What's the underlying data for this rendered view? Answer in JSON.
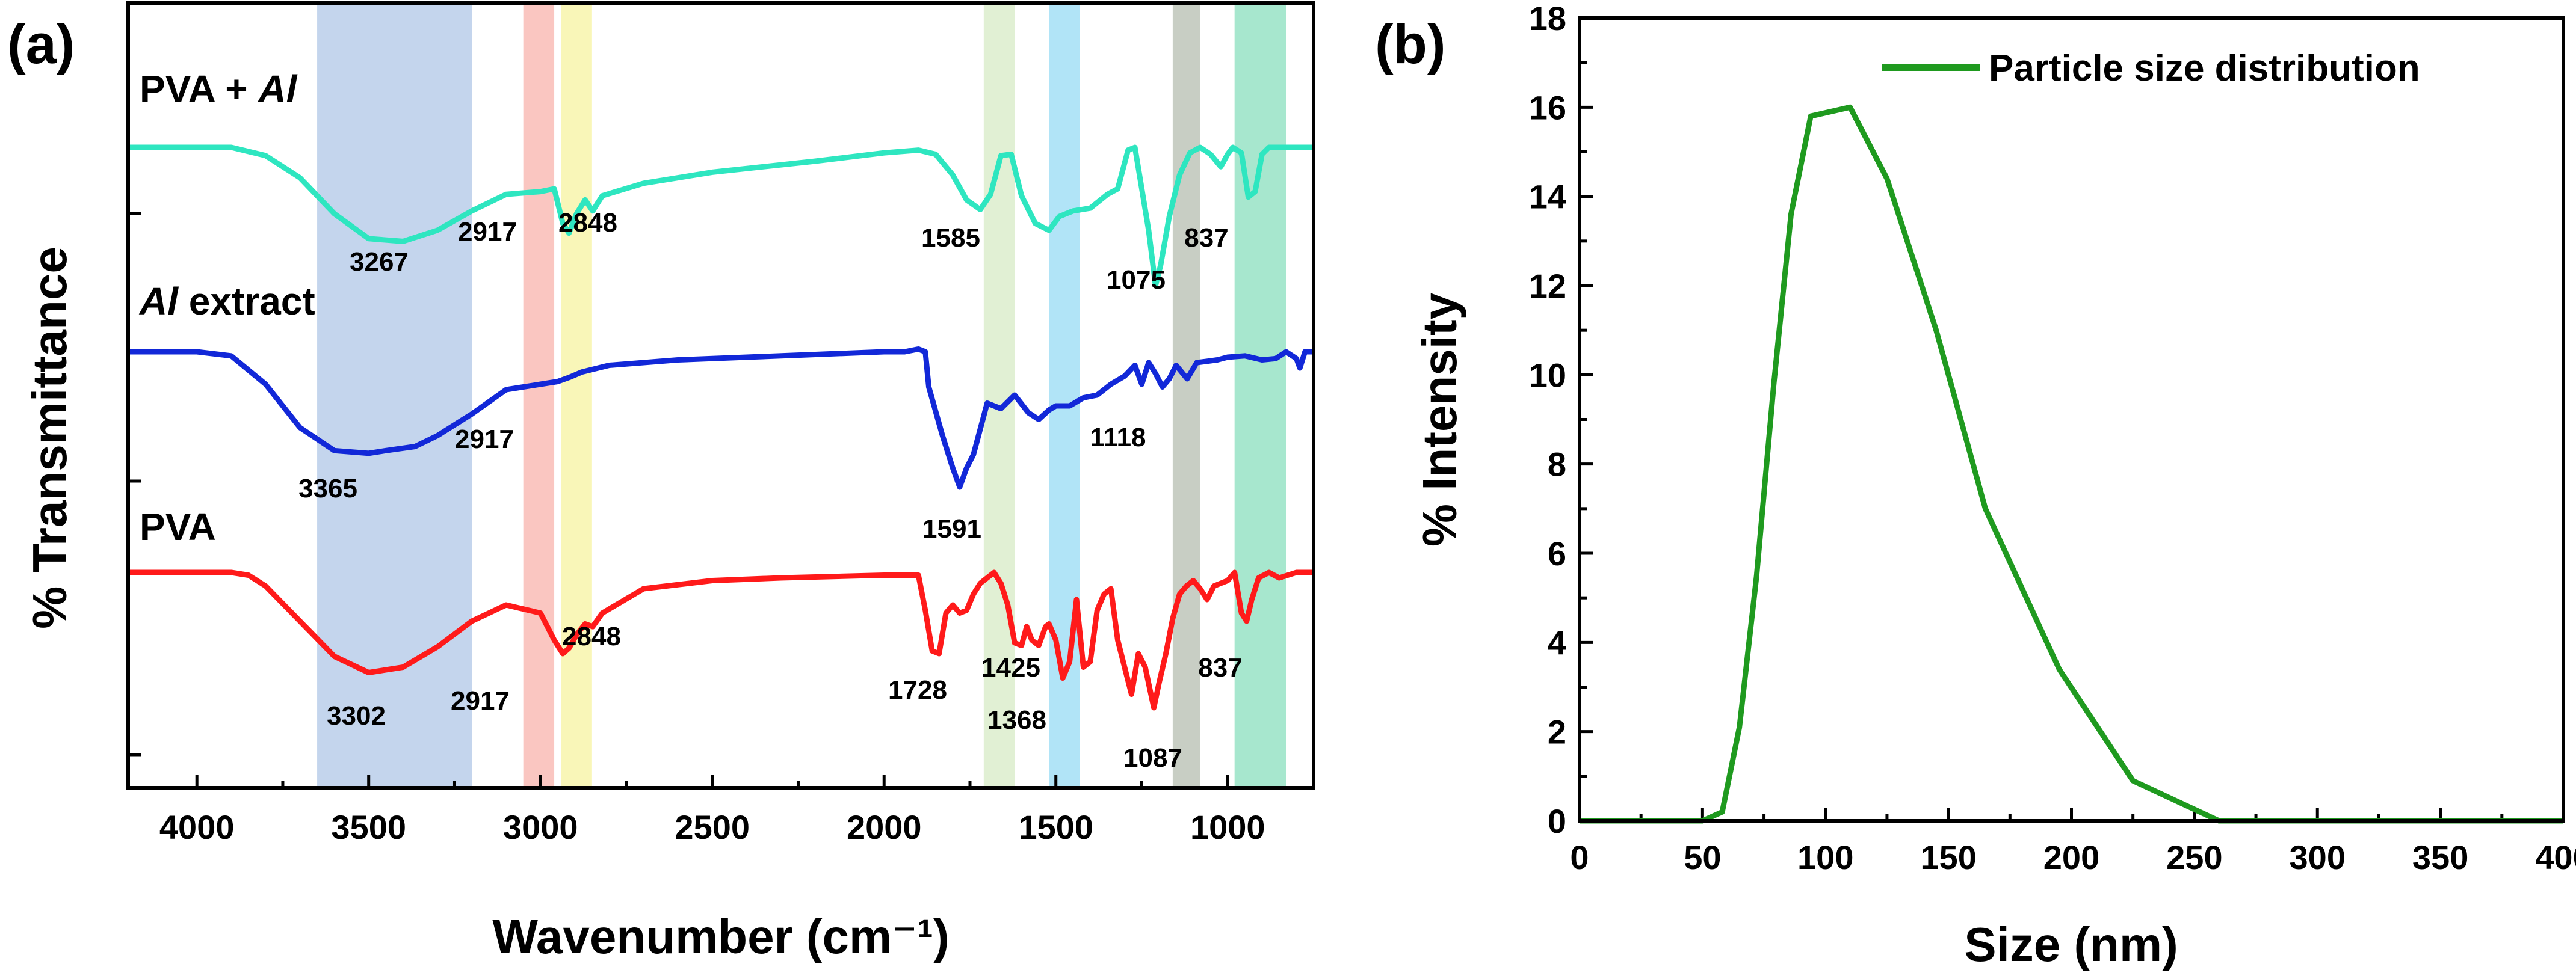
{
  "chart_data": [
    {
      "type": "line",
      "panel_label": "(a)",
      "xlabel": "Wavenumber (cm⁻¹)",
      "ylabel": "% Transmittance",
      "xlim": [
        4200,
        750
      ],
      "x_ticks": [
        4000,
        3500,
        3000,
        2500,
        2000,
        1500,
        1000
      ],
      "bands": [
        {
          "from": 3650,
          "to": 3200,
          "color": "#b4c9e8"
        },
        {
          "from": 3050,
          "to": 2960,
          "color": "#f8b6b0"
        },
        {
          "from": 2940,
          "to": 2850,
          "color": "#f7f4a4"
        },
        {
          "from": 1710,
          "to": 1620,
          "color": "#d9ecc8"
        },
        {
          "from": 1520,
          "to": 1430,
          "color": "#9bdcf5"
        },
        {
          "from": 1160,
          "to": 1080,
          "color": "#b8c0b4"
        },
        {
          "from": 980,
          "to": 830,
          "color": "#8ee0c0"
        }
      ],
      "series": [
        {
          "name": "PVA + Al",
          "label_prefix": "PVA + ",
          "label_italic": "Al",
          "label_suffix": "",
          "color": "#2ee6c0",
          "points": [
            [
              4200,
              0.0
            ],
            [
              3900,
              0.0
            ],
            [
              3800,
              0.06
            ],
            [
              3700,
              0.22
            ],
            [
              3600,
              0.48
            ],
            [
              3500,
              0.66
            ],
            [
              3400,
              0.68
            ],
            [
              3300,
              0.6
            ],
            [
              3200,
              0.46
            ],
            [
              3100,
              0.34
            ],
            [
              3000,
              0.32
            ],
            [
              2960,
              0.3
            ],
            [
              2935,
              0.55
            ],
            [
              2917,
              0.62
            ],
            [
              2895,
              0.48
            ],
            [
              2870,
              0.38
            ],
            [
              2848,
              0.46
            ],
            [
              2820,
              0.35
            ],
            [
              2700,
              0.26
            ],
            [
              2500,
              0.18
            ],
            [
              2200,
              0.1
            ],
            [
              2000,
              0.04
            ],
            [
              1900,
              0.02
            ],
            [
              1850,
              0.05
            ],
            [
              1800,
              0.2
            ],
            [
              1760,
              0.38
            ],
            [
              1720,
              0.45
            ],
            [
              1690,
              0.34
            ],
            [
              1660,
              0.06
            ],
            [
              1630,
              0.05
            ],
            [
              1600,
              0.35
            ],
            [
              1560,
              0.55
            ],
            [
              1520,
              0.6
            ],
            [
              1490,
              0.5
            ],
            [
              1450,
              0.46
            ],
            [
              1400,
              0.44
            ],
            [
              1350,
              0.34
            ],
            [
              1320,
              0.3
            ],
            [
              1290,
              0.02
            ],
            [
              1270,
              0.0
            ],
            [
              1250,
              0.3
            ],
            [
              1230,
              0.6
            ],
            [
              1210,
              1.0
            ],
            [
              1195,
              0.85
            ],
            [
              1170,
              0.5
            ],
            [
              1140,
              0.2
            ],
            [
              1110,
              0.04
            ],
            [
              1080,
              0.0
            ],
            [
              1050,
              0.05
            ],
            [
              1020,
              0.14
            ],
            [
              1000,
              0.05
            ],
            [
              985,
              0.0
            ],
            [
              960,
              0.04
            ],
            [
              940,
              0.36
            ],
            [
              920,
              0.32
            ],
            [
              900,
              0.05
            ],
            [
              880,
              0.0
            ],
            [
              837,
              0.0
            ],
            [
              800,
              0.0
            ],
            [
              750,
              0.0
            ]
          ]
        },
        {
          "name": "Al extract",
          "label_prefix": "",
          "label_italic": "Al",
          "label_suffix": " extract",
          "color": "#1228d8",
          "points": [
            [
              4200,
              0.0
            ],
            [
              4000,
              0.0
            ],
            [
              3900,
              0.03
            ],
            [
              3800,
              0.24
            ],
            [
              3700,
              0.56
            ],
            [
              3600,
              0.73
            ],
            [
              3500,
              0.75
            ],
            [
              3450,
              0.73
            ],
            [
              3365,
              0.7
            ],
            [
              3300,
              0.62
            ],
            [
              3200,
              0.46
            ],
            [
              3100,
              0.28
            ],
            [
              3000,
              0.24
            ],
            [
              2950,
              0.22
            ],
            [
              2917,
              0.19
            ],
            [
              2880,
              0.15
            ],
            [
              2800,
              0.1
            ],
            [
              2600,
              0.06
            ],
            [
              2400,
              0.04
            ],
            [
              2200,
              0.02
            ],
            [
              2000,
              0.0
            ],
            [
              1940,
              0.0
            ],
            [
              1900,
              -0.02
            ],
            [
              1880,
              0.0
            ],
            [
              1870,
              0.26
            ],
            [
              1830,
              0.62
            ],
            [
              1800,
              0.86
            ],
            [
              1780,
              1.0
            ],
            [
              1760,
              0.86
            ],
            [
              1740,
              0.76
            ],
            [
              1700,
              0.38
            ],
            [
              1660,
              0.42
            ],
            [
              1620,
              0.32
            ],
            [
              1580,
              0.45
            ],
            [
              1550,
              0.5
            ],
            [
              1520,
              0.43
            ],
            [
              1500,
              0.4
            ],
            [
              1460,
              0.4
            ],
            [
              1420,
              0.34
            ],
            [
              1380,
              0.32
            ],
            [
              1340,
              0.24
            ],
            [
              1300,
              0.18
            ],
            [
              1270,
              0.1
            ],
            [
              1250,
              0.24
            ],
            [
              1230,
              0.08
            ],
            [
              1210,
              0.16
            ],
            [
              1190,
              0.26
            ],
            [
              1170,
              0.2
            ],
            [
              1150,
              0.1
            ],
            [
              1118,
              0.2
            ],
            [
              1090,
              0.08
            ],
            [
              1060,
              0.07
            ],
            [
              1030,
              0.06
            ],
            [
              1000,
              0.04
            ],
            [
              950,
              0.03
            ],
            [
              900,
              0.06
            ],
            [
              860,
              0.05
            ],
            [
              830,
              0.0
            ],
            [
              800,
              0.05
            ],
            [
              790,
              0.12
            ],
            [
              775,
              0.0
            ],
            [
              750,
              0.0
            ]
          ]
        },
        {
          "name": "PVA",
          "label_prefix": "PVA",
          "label_italic": "",
          "label_suffix": "",
          "color": "#ff1a1a",
          "points": [
            [
              4200,
              0.0
            ],
            [
              3900,
              0.0
            ],
            [
              3850,
              0.02
            ],
            [
              3800,
              0.1
            ],
            [
              3700,
              0.36
            ],
            [
              3600,
              0.62
            ],
            [
              3500,
              0.74
            ],
            [
              3400,
              0.7
            ],
            [
              3300,
              0.55
            ],
            [
              3200,
              0.36
            ],
            [
              3100,
              0.24
            ],
            [
              3000,
              0.3
            ],
            [
              2960,
              0.5
            ],
            [
              2935,
              0.6
            ],
            [
              2917,
              0.56
            ],
            [
              2895,
              0.46
            ],
            [
              2870,
              0.38
            ],
            [
              2848,
              0.4
            ],
            [
              2820,
              0.3
            ],
            [
              2700,
              0.12
            ],
            [
              2500,
              0.06
            ],
            [
              2300,
              0.04
            ],
            [
              2000,
              0.02
            ],
            [
              1900,
              0.02
            ],
            [
              1880,
              0.28
            ],
            [
              1860,
              0.58
            ],
            [
              1840,
              0.6
            ],
            [
              1820,
              0.3
            ],
            [
              1800,
              0.24
            ],
            [
              1780,
              0.3
            ],
            [
              1760,
              0.28
            ],
            [
              1740,
              0.16
            ],
            [
              1720,
              0.08
            ],
            [
              1700,
              0.04
            ],
            [
              1680,
              0.0
            ],
            [
              1660,
              0.08
            ],
            [
              1640,
              0.24
            ],
            [
              1620,
              0.52
            ],
            [
              1600,
              0.54
            ],
            [
              1585,
              0.4
            ],
            [
              1570,
              0.5
            ],
            [
              1550,
              0.54
            ],
            [
              1530,
              0.4
            ],
            [
              1520,
              0.38
            ],
            [
              1500,
              0.5
            ],
            [
              1480,
              0.78
            ],
            [
              1460,
              0.66
            ],
            [
              1440,
              0.2
            ],
            [
              1420,
              0.7
            ],
            [
              1400,
              0.66
            ],
            [
              1380,
              0.28
            ],
            [
              1360,
              0.16
            ],
            [
              1340,
              0.12
            ],
            [
              1320,
              0.5
            ],
            [
              1300,
              0.7
            ],
            [
              1280,
              0.9
            ],
            [
              1260,
              0.6
            ],
            [
              1240,
              0.7
            ],
            [
              1230,
              0.82
            ],
            [
              1215,
              1.0
            ],
            [
              1200,
              0.82
            ],
            [
              1180,
              0.6
            ],
            [
              1160,
              0.34
            ],
            [
              1140,
              0.16
            ],
            [
              1120,
              0.1
            ],
            [
              1100,
              0.06
            ],
            [
              1080,
              0.12
            ],
            [
              1060,
              0.2
            ],
            [
              1040,
              0.1
            ],
            [
              1000,
              0.06
            ],
            [
              980,
              0.0
            ],
            [
              960,
              0.3
            ],
            [
              945,
              0.36
            ],
            [
              930,
              0.2
            ],
            [
              910,
              0.04
            ],
            [
              880,
              0.0
            ],
            [
              850,
              0.04
            ],
            [
              800,
              0.0
            ],
            [
              750,
              0.0
            ]
          ]
        }
      ],
      "peak_labels": [
        {
          "text": "3267",
          "series": 0,
          "x": 3267
        },
        {
          "text": "2917",
          "series": 0,
          "x": 2917
        },
        {
          "text": "2848",
          "series": 0,
          "x": 2848
        },
        {
          "text": "1585",
          "series": 0,
          "x": 1585
        },
        {
          "text": "1075",
          "series": 0,
          "x": 1075
        },
        {
          "text": "837",
          "series": 0,
          "x": 837
        },
        {
          "text": "3365",
          "series": 1,
          "x": 3365
        },
        {
          "text": "2917",
          "series": 1,
          "x": 2917
        },
        {
          "text": "1591",
          "series": 1,
          "x": 1591
        },
        {
          "text": "1118",
          "series": 1,
          "x": 1118
        },
        {
          "text": "3302",
          "series": 2,
          "x": 3302
        },
        {
          "text": "2917",
          "series": 2,
          "x": 2917
        },
        {
          "text": "2848",
          "series": 2,
          "x": 2848
        },
        {
          "text": "1728",
          "series": 2,
          "x": 1728
        },
        {
          "text": "1425",
          "series": 2,
          "x": 1425
        },
        {
          "text": "1368",
          "series": 2,
          "x": 1368
        },
        {
          "text": "1087",
          "series": 2,
          "x": 1087
        },
        {
          "text": "837",
          "series": 2,
          "x": 837
        }
      ]
    },
    {
      "type": "line",
      "panel_label": "(b)",
      "xlabel": "Size (nm)",
      "ylabel": "% Intensity",
      "xlim": [
        0,
        400
      ],
      "ylim": [
        0,
        18
      ],
      "x_ticks": [
        0,
        50,
        100,
        150,
        200,
        250,
        300,
        350,
        400
      ],
      "y_ticks": [
        0,
        2,
        4,
        6,
        8,
        10,
        12,
        14,
        16,
        18
      ],
      "legend": "Particle size distribution",
      "legend_position": "top-right",
      "series": [
        {
          "name": "Particle size distribution",
          "color": "#1f9a1f",
          "x": [
            0,
            50,
            58,
            65,
            72,
            79,
            86,
            94,
            110,
            125,
            145,
            165,
            195,
            225,
            260,
            300,
            350,
            400
          ],
          "y": [
            0,
            0,
            0.2,
            2.1,
            5.5,
            9.8,
            13.6,
            15.8,
            16.0,
            14.4,
            11.0,
            7.0,
            3.4,
            0.9,
            0,
            0,
            0,
            0
          ]
        }
      ]
    }
  ]
}
